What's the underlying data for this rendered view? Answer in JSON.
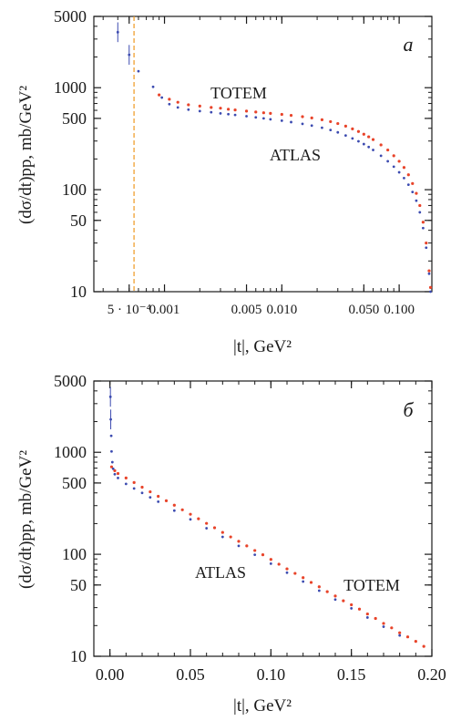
{
  "chart_data": [
    {
      "type": "scatter",
      "panel_label": "a",
      "xscale": "log",
      "yscale": "log",
      "xlim": [
        0.00025,
        0.19
      ],
      "ylim": [
        10,
        5000
      ],
      "xlabel": "|t|, GeV²",
      "ylabel": "(dσ/dt)pp, mb/GeV²",
      "x_ticks": [
        {
          "value": 0.0005,
          "label": "5 · 10⁻⁴"
        },
        {
          "value": 0.001,
          "label": "0.001"
        },
        {
          "value": 0.005,
          "label": "0.005"
        },
        {
          "value": 0.01,
          "label": "0.010"
        },
        {
          "value": 0.05,
          "label": "0.050"
        },
        {
          "value": 0.1,
          "label": "0.100"
        }
      ],
      "y_ticks": [
        {
          "value": 10,
          "label": "10"
        },
        {
          "value": 50,
          "label": "50"
        },
        {
          "value": 100,
          "label": "100"
        },
        {
          "value": 500,
          "label": "500"
        },
        {
          "value": 1000,
          "label": "1000"
        },
        {
          "value": 5000,
          "label": "5000"
        }
      ],
      "vline": {
        "x": 0.00055,
        "color": "#f0a030"
      },
      "series": [
        {
          "name": "TOTEM",
          "color": "#e8442a",
          "x": [
            0.0009,
            0.0011,
            0.0013,
            0.0016,
            0.002,
            0.0025,
            0.003,
            0.0035,
            0.004,
            0.005,
            0.006,
            0.007,
            0.008,
            0.01,
            0.012,
            0.015,
            0.018,
            0.022,
            0.026,
            0.03,
            0.035,
            0.04,
            0.045,
            0.05,
            0.055,
            0.06,
            0.07,
            0.08,
            0.09,
            0.1,
            0.11,
            0.12,
            0.13,
            0.14,
            0.15,
            0.16,
            0.17,
            0.18,
            0.185
          ],
          "y": [
            850,
            770,
            720,
            680,
            660,
            640,
            630,
            615,
            605,
            590,
            578,
            568,
            560,
            548,
            535,
            520,
            505,
            485,
            465,
            445,
            420,
            395,
            372,
            350,
            330,
            310,
            275,
            245,
            215,
            190,
            165,
            140,
            115,
            92,
            70,
            48,
            30,
            16,
            11
          ]
        },
        {
          "name": "ATLAS",
          "color": "#3c4bb0",
          "x": [
            0.0004,
            0.0005,
            0.0006,
            0.0008,
            0.00095,
            0.0011,
            0.0013,
            0.0016,
            0.002,
            0.0025,
            0.003,
            0.0035,
            0.004,
            0.005,
            0.006,
            0.007,
            0.008,
            0.01,
            0.012,
            0.015,
            0.018,
            0.022,
            0.026,
            0.03,
            0.035,
            0.04,
            0.045,
            0.05,
            0.055,
            0.06,
            0.07,
            0.08,
            0.09,
            0.1,
            0.11,
            0.12,
            0.13,
            0.14,
            0.15,
            0.16,
            0.17,
            0.18,
            0.185
          ],
          "y": [
            3500,
            2100,
            1450,
            1020,
            800,
            690,
            640,
            610,
            590,
            575,
            560,
            550,
            540,
            525,
            512,
            500,
            490,
            475,
            460,
            442,
            425,
            405,
            385,
            365,
            340,
            318,
            298,
            280,
            262,
            245,
            215,
            190,
            168,
            148,
            130,
            112,
            95,
            78,
            60,
            42,
            27,
            15,
            10
          ]
        }
      ],
      "annotations": [
        {
          "text": "TOTEM"
        },
        {
          "text": "ATLAS"
        }
      ]
    },
    {
      "type": "scatter",
      "panel_label": "б",
      "xscale": "linear",
      "yscale": "log",
      "xlim": [
        -0.01,
        0.2
      ],
      "ylim": [
        10,
        5000
      ],
      "xlabel": "|t|, GeV²",
      "ylabel": "(dσ/dt)pp, mb/GeV²",
      "x_ticks": [
        {
          "value": 0.0,
          "label": "0.00"
        },
        {
          "value": 0.05,
          "label": "0.05"
        },
        {
          "value": 0.1,
          "label": "0.10"
        },
        {
          "value": 0.15,
          "label": "0.15"
        },
        {
          "value": 0.2,
          "label": "0.20"
        }
      ],
      "y_ticks": [
        {
          "value": 10,
          "label": "10"
        },
        {
          "value": 50,
          "label": "50"
        },
        {
          "value": 100,
          "label": "100"
        },
        {
          "value": 500,
          "label": "500"
        },
        {
          "value": 1000,
          "label": "1000"
        },
        {
          "value": 5000,
          "label": "5000"
        }
      ],
      "series": [
        {
          "name": "TOTEM",
          "color": "#e8442a",
          "x": [
            0.001,
            0.003,
            0.005,
            0.01,
            0.015,
            0.02,
            0.025,
            0.03,
            0.035,
            0.04,
            0.045,
            0.05,
            0.055,
            0.06,
            0.065,
            0.07,
            0.075,
            0.08,
            0.085,
            0.09,
            0.095,
            0.1,
            0.105,
            0.11,
            0.115,
            0.12,
            0.125,
            0.13,
            0.135,
            0.14,
            0.145,
            0.15,
            0.155,
            0.16,
            0.165,
            0.17,
            0.175,
            0.18,
            0.185,
            0.19,
            0.195
          ],
          "y": [
            720,
            660,
            620,
            560,
            505,
            455,
            410,
            370,
            335,
            303,
            273,
            247,
            223,
            201,
            182,
            164,
            148,
            134,
            121,
            109,
            99,
            89,
            80,
            72,
            65,
            59,
            53,
            48,
            43,
            39,
            35,
            32,
            29,
            26,
            23.5,
            21,
            19,
            17,
            15.5,
            14,
            12.5
          ]
        },
        {
          "name": "ATLAS",
          "color": "#3c4bb0",
          "x": [
            0.0003,
            0.0005,
            0.0008,
            0.001,
            0.0015,
            0.002,
            0.003,
            0.005,
            0.01,
            0.015,
            0.02,
            0.025,
            0.03,
            0.04,
            0.05,
            0.06,
            0.07,
            0.08,
            0.09,
            0.1,
            0.11,
            0.12,
            0.13,
            0.14,
            0.15,
            0.16,
            0.17,
            0.18
          ],
          "y": [
            3500,
            2100,
            1450,
            1020,
            800,
            690,
            610,
            560,
            490,
            442,
            400,
            362,
            328,
            268,
            220,
            180,
            148,
            121,
            99,
            81,
            66,
            54,
            44,
            36,
            29.5,
            24,
            19.5,
            16
          ]
        }
      ],
      "annotations": [
        {
          "text": "ATLAS"
        },
        {
          "text": "TOTEM"
        }
      ]
    }
  ]
}
